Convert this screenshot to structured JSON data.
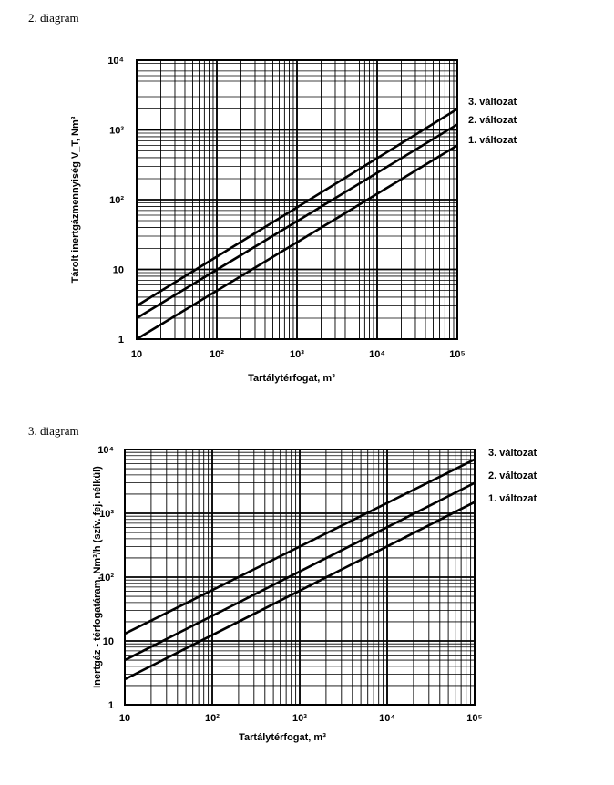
{
  "figures": [
    {
      "caption": "2. diagram"
    },
    {
      "caption": "3. diagram"
    }
  ],
  "chart_data": [
    {
      "type": "line",
      "xlabel": "Tartálytérfogat, m³",
      "ylabel": "Tárolt inertgázmennyiség  V_T, Nm³",
      "xscale": "log",
      "yscale": "log",
      "xlim": [
        10,
        100000
      ],
      "ylim": [
        1,
        10000
      ],
      "xticks": [
        "10",
        "10²",
        "10³",
        "10⁴",
        "10⁵"
      ],
      "yticks": [
        "1",
        "10",
        "10²",
        "10³",
        "10⁴"
      ],
      "grid": true,
      "series": [
        {
          "name": "3. változat",
          "x": [
            10,
            100000
          ],
          "y": [
            3,
            2000
          ]
        },
        {
          "name": "2. változat",
          "x": [
            10,
            100000
          ],
          "y": [
            2,
            1200
          ]
        },
        {
          "name": "1. változat",
          "x": [
            10,
            100000
          ],
          "y": [
            1,
            600
          ]
        }
      ]
    },
    {
      "type": "line",
      "xlabel": "Tartálytérfogat, m³",
      "ylabel": "Inertgáz - térfogatáram, Nm³/h (szív. fej. nélkül)",
      "xscale": "log",
      "yscale": "log",
      "xlim": [
        10,
        100000
      ],
      "ylim": [
        1,
        10000
      ],
      "xticks": [
        "10",
        "10²",
        "10³",
        "10⁴",
        "10⁵"
      ],
      "yticks": [
        "1",
        "10",
        "10²",
        "10³",
        "10⁴"
      ],
      "grid": true,
      "series": [
        {
          "name": "3. változat",
          "x": [
            10,
            100000
          ],
          "y": [
            13,
            7000
          ]
        },
        {
          "name": "2. változat",
          "x": [
            10,
            100000
          ],
          "y": [
            5,
            3000
          ]
        },
        {
          "name": "1. változat",
          "x": [
            10,
            100000
          ],
          "y": [
            2.5,
            1500
          ]
        }
      ]
    }
  ]
}
